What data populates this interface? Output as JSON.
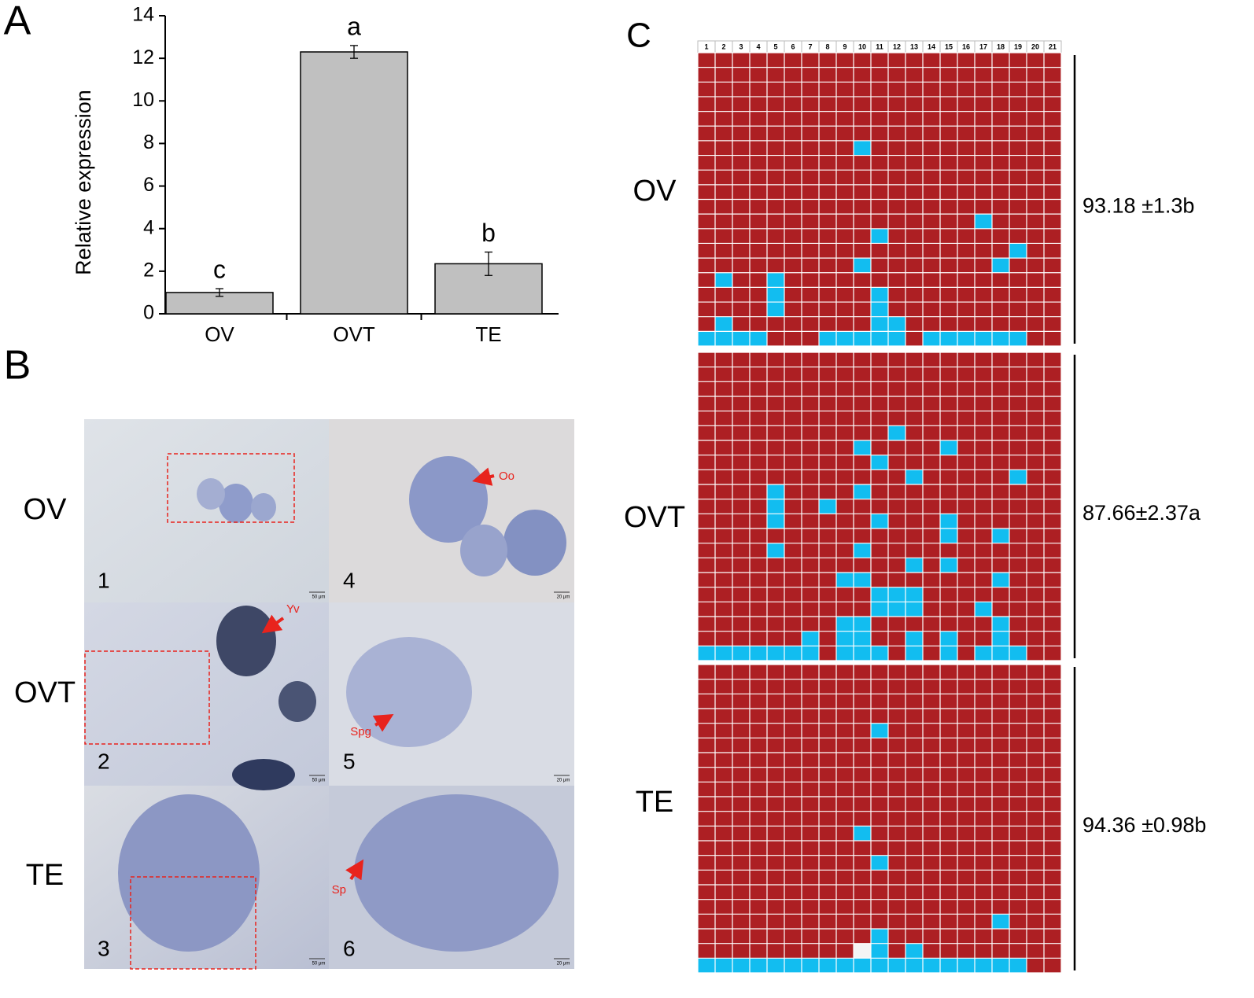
{
  "chart_data": {
    "type": "bar",
    "panel_letter": "A",
    "y_label": "Relative expression",
    "categories": [
      "OV",
      "OVT",
      "TE"
    ],
    "values": [
      1.0,
      12.3,
      2.35
    ],
    "errors": [
      0.18,
      0.3,
      0.55
    ],
    "annotations": [
      "c",
      "a",
      "b"
    ],
    "color": "#c0c0c0",
    "ylim": [
      0,
      14
    ],
    "yticks": [
      0,
      2,
      4,
      6,
      8,
      10,
      12,
      14
    ]
  },
  "panels": {
    "panel_letter": "B",
    "row_labels": [
      "OV",
      "OVT",
      "TE"
    ],
    "numbers": [
      "1",
      "2",
      "3",
      "4",
      "5",
      "6"
    ],
    "arrows": [
      "Oo",
      "Yv",
      "Spg",
      "Sp"
    ],
    "scale_bars": [
      "50 μm",
      "20 μm",
      "50 μm",
      "20 μm",
      "50 μm",
      "20 μm"
    ]
  },
  "methylation": {
    "panel_letter": "C",
    "columns": [
      "1",
      "2",
      "3",
      "4",
      "5",
      "6",
      "7",
      "8",
      "9",
      "10",
      "11",
      "12",
      "13",
      "14",
      "15",
      "16",
      "17",
      "18",
      "19",
      "20",
      "21"
    ],
    "methylated_color": "#ad1f23",
    "unmethylated_color": "#12bdf0",
    "blocks": [
      {
        "label": "OV",
        "rows": 20,
        "value": "93.18 ±1.3b",
        "blue": [
          [
            6,
            10
          ],
          [
            11,
            17
          ],
          [
            12,
            11
          ],
          [
            13,
            19
          ],
          [
            14,
            10
          ],
          [
            14,
            18
          ],
          [
            15,
            2
          ],
          [
            15,
            5
          ],
          [
            16,
            5
          ],
          [
            17,
            5
          ],
          [
            16,
            11
          ],
          [
            17,
            11
          ],
          [
            18,
            11
          ],
          [
            18,
            2
          ],
          [
            18,
            12
          ],
          [
            19,
            1
          ],
          [
            19,
            2
          ],
          [
            19,
            3
          ],
          [
            19,
            4
          ],
          [
            19,
            8
          ],
          [
            19,
            9
          ],
          [
            19,
            10
          ],
          [
            19,
            11
          ],
          [
            19,
            12
          ],
          [
            19,
            14
          ],
          [
            19,
            15
          ],
          [
            19,
            16
          ],
          [
            19,
            17
          ],
          [
            19,
            18
          ],
          [
            19,
            19
          ]
        ],
        "white": []
      },
      {
        "label": "OVT",
        "rows": 21,
        "value": "87.66±2.37a",
        "blue": [
          [
            5,
            12
          ],
          [
            6,
            10
          ],
          [
            6,
            15
          ],
          [
            7,
            11
          ],
          [
            8,
            13
          ],
          [
            8,
            19
          ],
          [
            9,
            10
          ],
          [
            9,
            5
          ],
          [
            10,
            5
          ],
          [
            11,
            5
          ],
          [
            13,
            5
          ],
          [
            10,
            8
          ],
          [
            11,
            11
          ],
          [
            11,
            15
          ],
          [
            12,
            15
          ],
          [
            12,
            18
          ],
          [
            13,
            10
          ],
          [
            14,
            13
          ],
          [
            14,
            15
          ],
          [
            15,
            9
          ],
          [
            15,
            10
          ],
          [
            15,
            18
          ],
          [
            16,
            11
          ],
          [
            16,
            12
          ],
          [
            16,
            13
          ],
          [
            17,
            11
          ],
          [
            17,
            12
          ],
          [
            17,
            13
          ],
          [
            17,
            17
          ],
          [
            18,
            9
          ],
          [
            18,
            10
          ],
          [
            18,
            18
          ],
          [
            19,
            9
          ],
          [
            19,
            10
          ],
          [
            19,
            18
          ],
          [
            19,
            7
          ],
          [
            19,
            13
          ],
          [
            19,
            15
          ],
          [
            20,
            1
          ],
          [
            20,
            2
          ],
          [
            20,
            3
          ],
          [
            20,
            4
          ],
          [
            20,
            5
          ],
          [
            20,
            6
          ],
          [
            20,
            7
          ],
          [
            20,
            9
          ],
          [
            20,
            10
          ],
          [
            20,
            11
          ],
          [
            20,
            13
          ],
          [
            20,
            15
          ],
          [
            20,
            17
          ],
          [
            20,
            18
          ],
          [
            20,
            19
          ]
        ],
        "white": []
      },
      {
        "label": "TE",
        "rows": 21,
        "value": "94.36 ±0.98b",
        "blue": [
          [
            4,
            11
          ],
          [
            11,
            10
          ],
          [
            13,
            11
          ],
          [
            17,
            18
          ],
          [
            18,
            11
          ],
          [
            19,
            11
          ],
          [
            19,
            13
          ],
          [
            20,
            1
          ],
          [
            20,
            2
          ],
          [
            20,
            3
          ],
          [
            20,
            4
          ],
          [
            20,
            5
          ],
          [
            20,
            6
          ],
          [
            20,
            7
          ],
          [
            20,
            8
          ],
          [
            20,
            9
          ],
          [
            20,
            10
          ],
          [
            20,
            11
          ],
          [
            20,
            12
          ],
          [
            20,
            13
          ],
          [
            20,
            14
          ],
          [
            20,
            15
          ],
          [
            20,
            16
          ],
          [
            20,
            17
          ],
          [
            20,
            18
          ],
          [
            20,
            19
          ]
        ],
        "white": [
          [
            19,
            10
          ]
        ]
      }
    ]
  }
}
